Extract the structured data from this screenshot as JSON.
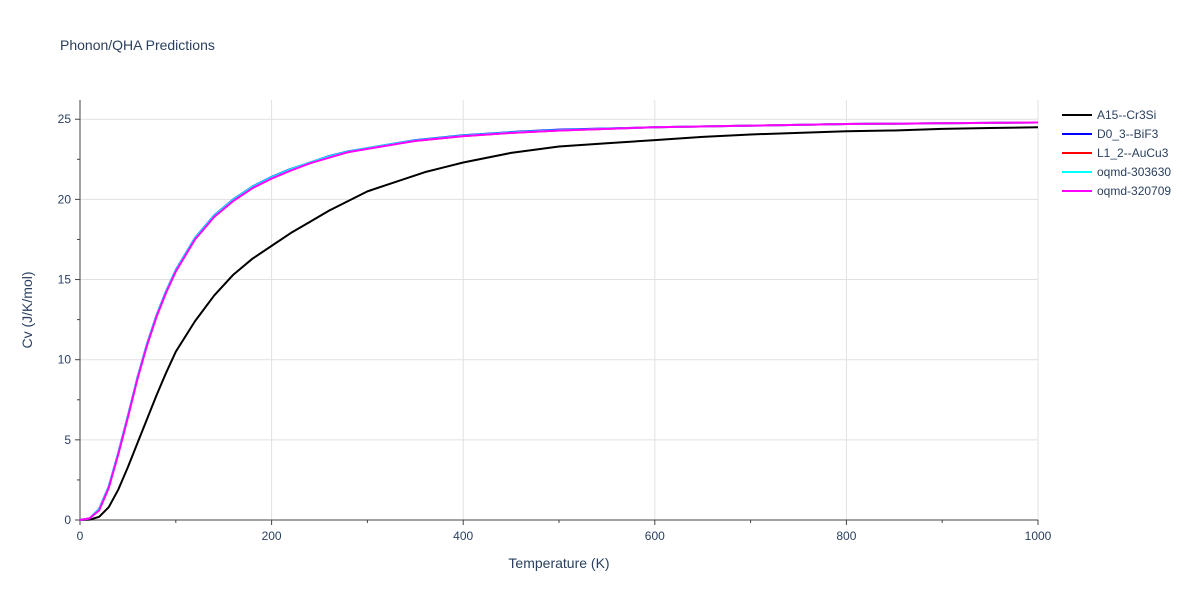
{
  "chart_data": {
    "type": "line",
    "title": "Phonon/QHA Predictions",
    "xlabel": "Temperature (K)",
    "ylabel": "Cv (J/K/mol)",
    "xlim": [
      0,
      1000
    ],
    "ylim": [
      0,
      26.2
    ],
    "xticks": [
      0,
      200,
      400,
      600,
      800,
      1000
    ],
    "yticks": [
      0,
      5,
      10,
      15,
      20,
      25
    ],
    "grid": true,
    "legend_position": "top-right",
    "series": [
      {
        "name": "A15--Cr3Si",
        "color": "#000000",
        "x": [
          0,
          10,
          20,
          30,
          40,
          50,
          60,
          70,
          80,
          90,
          100,
          120,
          140,
          160,
          180,
          200,
          220,
          240,
          260,
          280,
          300,
          320,
          340,
          360,
          380,
          400,
          450,
          500,
          550,
          600,
          650,
          700,
          750,
          800,
          850,
          900,
          950,
          1000
        ],
        "y": [
          0,
          0.02,
          0.2,
          0.8,
          1.9,
          3.3,
          4.8,
          6.3,
          7.8,
          9.2,
          10.5,
          12.4,
          14.0,
          15.3,
          16.3,
          17.1,
          17.9,
          18.6,
          19.3,
          19.9,
          20.5,
          20.9,
          21.3,
          21.7,
          22.0,
          22.3,
          22.9,
          23.3,
          23.5,
          23.7,
          23.9,
          24.05,
          24.15,
          24.25,
          24.3,
          24.4,
          24.45,
          24.5
        ]
      },
      {
        "name": "D0_3--BiF3",
        "color": "#0000ff",
        "x": [
          0,
          10,
          20,
          30,
          40,
          50,
          60,
          70,
          80,
          90,
          100,
          120,
          140,
          160,
          180,
          200,
          220,
          240,
          260,
          280,
          300,
          350,
          400,
          450,
          500,
          600,
          700,
          800,
          900,
          1000
        ],
        "y": [
          0,
          0.1,
          0.7,
          2.1,
          4.2,
          6.5,
          8.9,
          11.0,
          12.8,
          14.3,
          15.6,
          17.6,
          19.0,
          20.0,
          20.8,
          21.4,
          21.9,
          22.3,
          22.7,
          23.0,
          23.2,
          23.7,
          24.0,
          24.2,
          24.35,
          24.5,
          24.6,
          24.7,
          24.75,
          24.8
        ]
      },
      {
        "name": "L1_2--AuCu3",
        "color": "#ff0000",
        "x": [
          0,
          10,
          20,
          30,
          40,
          50,
          60,
          70,
          80,
          90,
          100,
          120,
          140,
          160,
          180,
          200,
          220,
          240,
          260,
          280,
          300,
          350,
          400,
          450,
          500,
          600,
          700,
          800,
          900,
          1000
        ],
        "y": [
          0,
          0.1,
          0.65,
          2.05,
          4.15,
          6.45,
          8.85,
          10.95,
          12.75,
          14.25,
          15.55,
          17.55,
          18.95,
          19.95,
          20.75,
          21.35,
          21.85,
          22.3,
          22.65,
          22.95,
          23.2,
          23.65,
          23.95,
          24.15,
          24.3,
          24.5,
          24.6,
          24.7,
          24.75,
          24.8
        ]
      },
      {
        "name": "oqmd-303630",
        "color": "#00ffff",
        "x": [
          0,
          10,
          20,
          30,
          40,
          50,
          60,
          70,
          80,
          90,
          100,
          120,
          140,
          160,
          180,
          200,
          220,
          240,
          260,
          280,
          300,
          350,
          400,
          450,
          500,
          600,
          700,
          800,
          900,
          1000
        ],
        "y": [
          0,
          0.1,
          0.68,
          2.08,
          4.18,
          6.48,
          8.88,
          10.98,
          12.78,
          14.28,
          15.58,
          17.58,
          18.98,
          19.98,
          20.78,
          21.38,
          21.88,
          22.3,
          22.68,
          22.98,
          23.2,
          23.68,
          23.98,
          24.18,
          24.32,
          24.5,
          24.6,
          24.7,
          24.75,
          24.8
        ]
      },
      {
        "name": "oqmd-320709",
        "color": "#ff00ff",
        "x": [
          0,
          10,
          20,
          30,
          40,
          50,
          60,
          70,
          80,
          90,
          100,
          120,
          140,
          160,
          180,
          200,
          220,
          240,
          260,
          280,
          300,
          350,
          400,
          450,
          500,
          600,
          700,
          800,
          900,
          1000
        ],
        "y": [
          0,
          0.1,
          0.6,
          2.0,
          4.1,
          6.4,
          8.8,
          10.9,
          12.7,
          14.2,
          15.5,
          17.5,
          18.9,
          19.9,
          20.7,
          21.3,
          21.8,
          22.25,
          22.6,
          22.95,
          23.15,
          23.65,
          23.95,
          24.15,
          24.3,
          24.5,
          24.6,
          24.7,
          24.75,
          24.8
        ]
      }
    ]
  }
}
